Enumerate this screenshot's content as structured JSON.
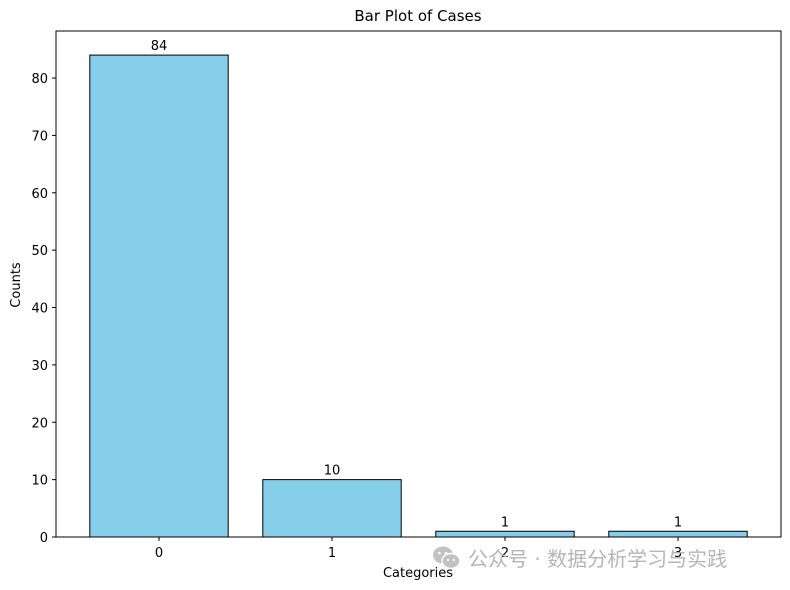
{
  "chart_data": {
    "type": "bar",
    "title": "Bar Plot of Cases",
    "xlabel": "Categories",
    "ylabel": "Counts",
    "categories": [
      "0",
      "1",
      "2",
      "3"
    ],
    "values": [
      84,
      10,
      1,
      1
    ],
    "data_labels": [
      "84",
      "10",
      "1",
      "1"
    ],
    "ylim": [
      0,
      88.2
    ],
    "yticks": [
      0,
      10,
      20,
      30,
      40,
      50,
      60,
      70,
      80
    ],
    "bar_color": "#87CEEB",
    "edge_color": "#000000",
    "grid": false,
    "legend": "none"
  },
  "watermark": {
    "icon": "wechat-icon",
    "text": "公众号 · 数据分析学习与实践"
  }
}
